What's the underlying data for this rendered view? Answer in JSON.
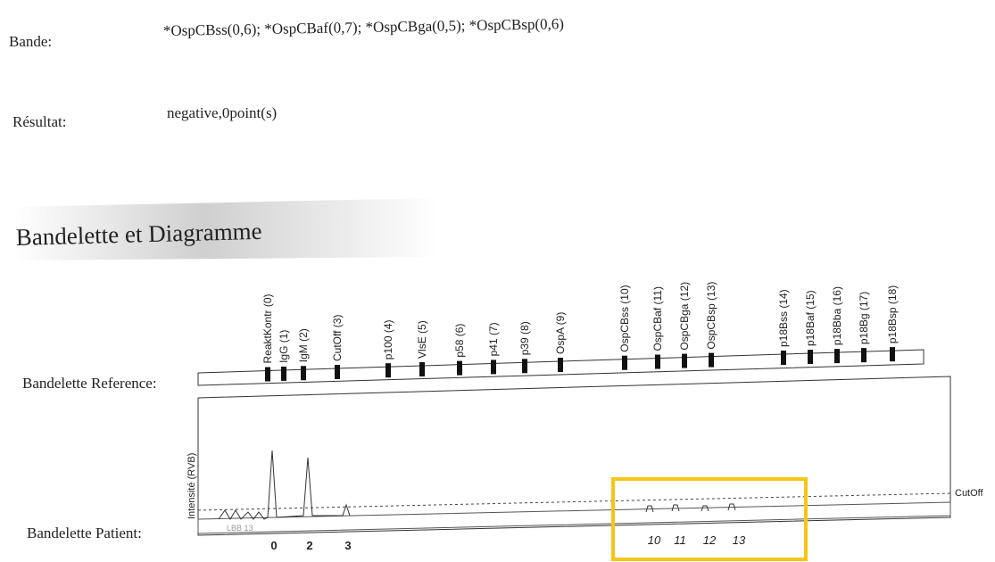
{
  "fields": [
    {
      "label": "Bande:",
      "value": "*OspCBss(0,6); *OspCBaf(0,7); *OspCBga(0,5); *OspCBsp(0,6)"
    },
    {
      "label": "Résultat:",
      "value": "negative,0point(s)"
    }
  ],
  "section_title": "Bandelette et Diagramme",
  "strip": {
    "reference_label": "Bandelette Reference:",
    "patient_label": "Bandelette Patient:",
    "y_axis_label": "Intensité (RVB)",
    "cutoff_label": "CutOff",
    "strip_code": "LBB 13",
    "bands": [
      "ReaktKontr (0)",
      "IgG (1)",
      "IgM (2)",
      "CutOff (3)",
      "p100 (4)",
      "VlsE (5)",
      "p58 (6)",
      "p41 (7)",
      "p39 (8)",
      "OspA (9)",
      "OspCBss (10)",
      "OspCBaf (11)",
      "OspCBga (12)",
      "OspCBsp (13)",
      "p18Bss (14)",
      "p18Baf (15)",
      "p18Bba (16)",
      "p18Bg (17)",
      "p18Bsp (18)"
    ],
    "peak_labels": [
      "0",
      "2",
      "3",
      "10",
      "11",
      "12",
      "13"
    ]
  }
}
